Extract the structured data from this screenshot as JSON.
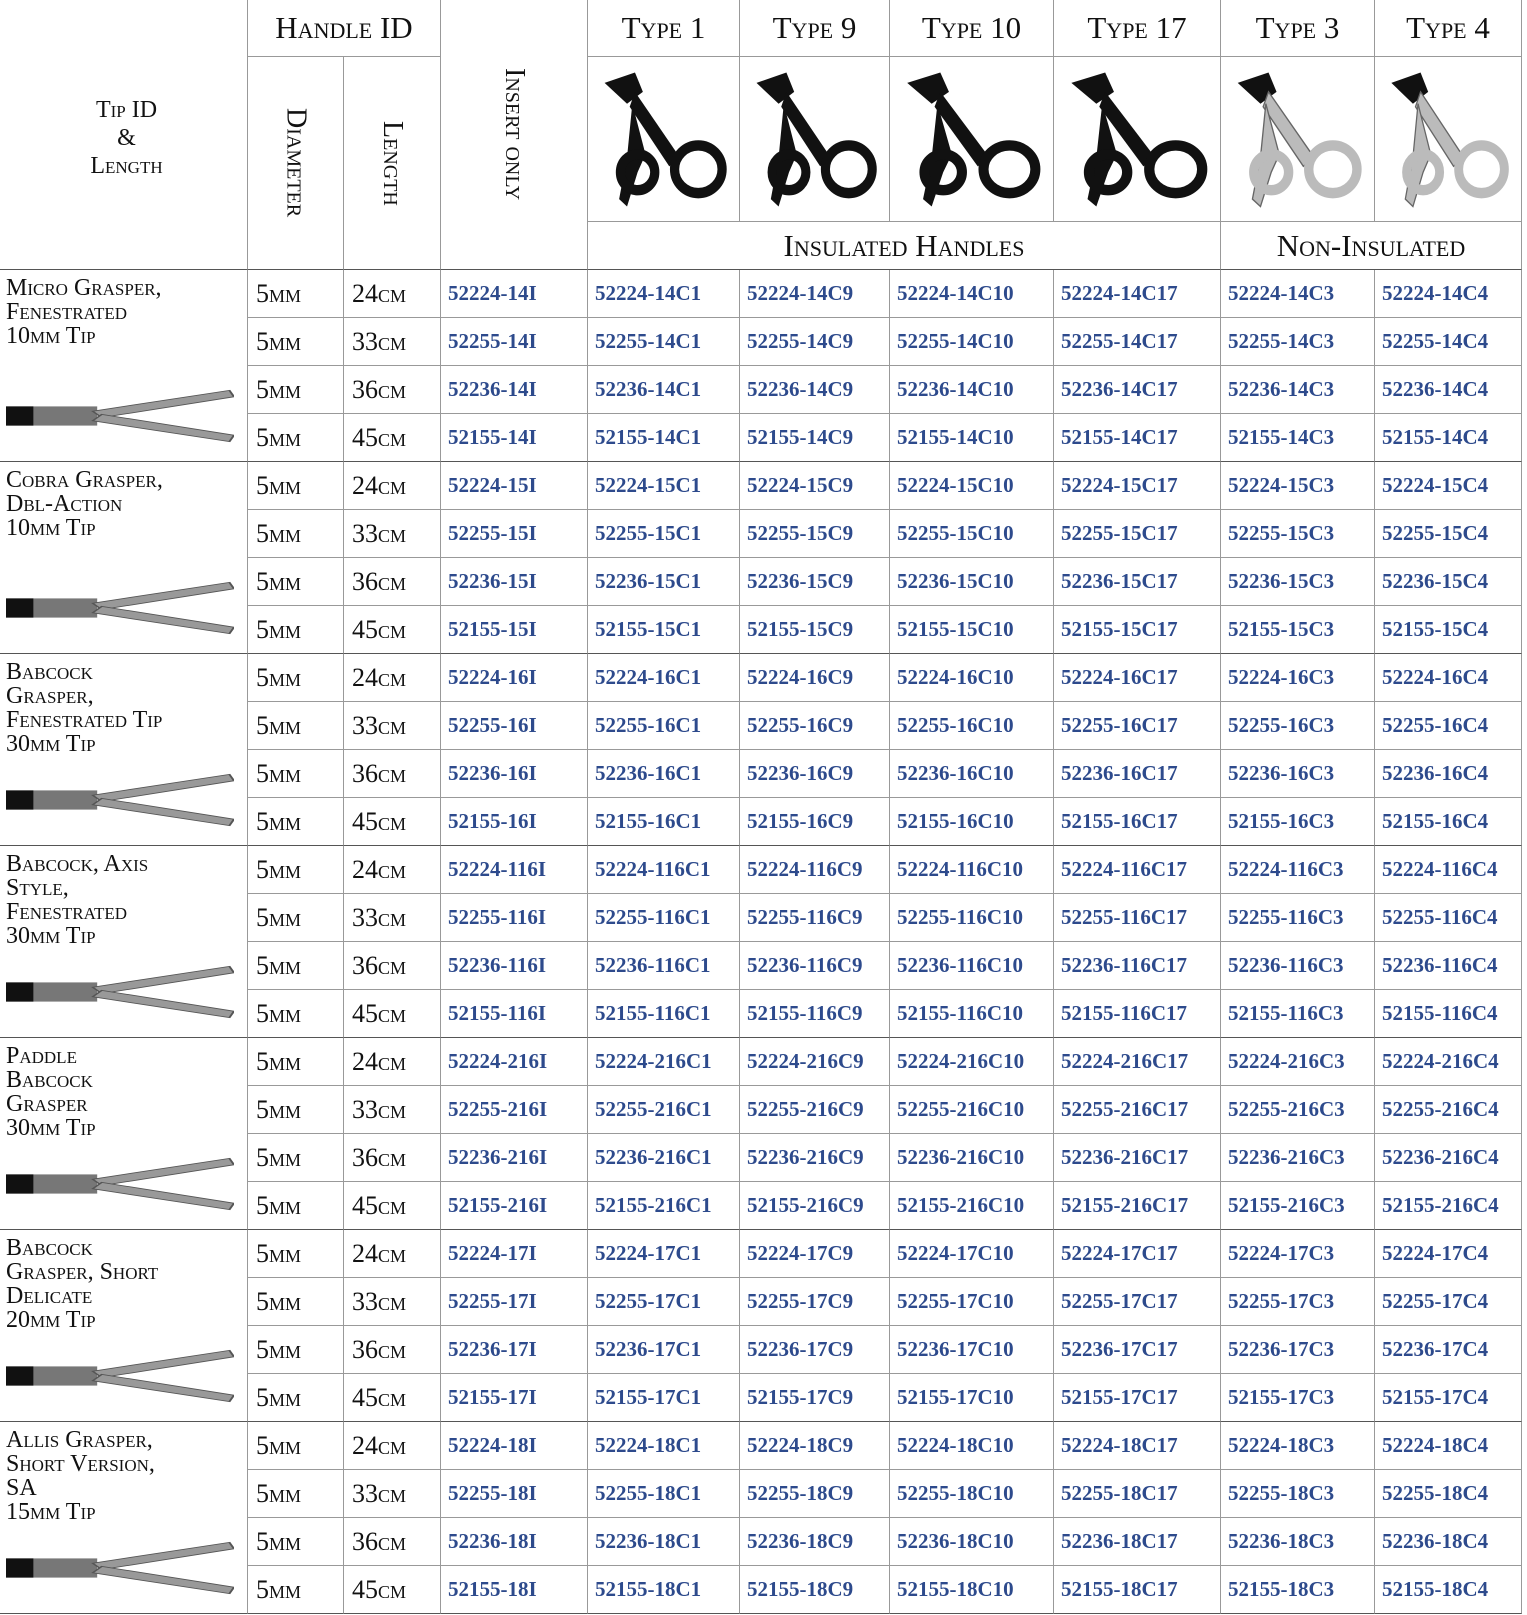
{
  "header": {
    "tip_header": [
      "Tip ID",
      "&",
      "Length"
    ],
    "handle_id": "Handle ID",
    "diameter": "Diameter",
    "length": "Length",
    "insert_only": "Insert only",
    "types": [
      "Type 1",
      "Type 9",
      "Type 10",
      "Type 17",
      "Type 3",
      "Type 4"
    ],
    "insulated": "Insulated Handles",
    "non_insulated": "Non-Insulated"
  },
  "groups": [
    {
      "name_lines": [
        "Micro Grasper,",
        "Fenestrated",
        "10mm Tip"
      ],
      "rows": [
        {
          "diameter": "5mm",
          "length": "24cm",
          "codes": [
            "52224-14I",
            "52224-14C1",
            "52224-14C9",
            "52224-14C10",
            "52224-14C17",
            "52224-14C3",
            "52224-14C4"
          ]
        },
        {
          "diameter": "5mm",
          "length": "33cm",
          "codes": [
            "52255-14I",
            "52255-14C1",
            "52255-14C9",
            "52255-14C10",
            "52255-14C17",
            "52255-14C3",
            "52255-14C4"
          ]
        },
        {
          "diameter": "5mm",
          "length": "36cm",
          "codes": [
            "52236-14I",
            "52236-14C1",
            "52236-14C9",
            "52236-14C10",
            "52236-14C17",
            "52236-14C3",
            "52236-14C4"
          ]
        },
        {
          "diameter": "5mm",
          "length": "45cm",
          "codes": [
            "52155-14I",
            "52155-14C1",
            "52155-14C9",
            "52155-14C10",
            "52155-14C17",
            "52155-14C3",
            "52155-14C4"
          ]
        }
      ]
    },
    {
      "name_lines": [
        "Cobra Grasper,",
        "Dbl-Action",
        "10mm Tip"
      ],
      "rows": [
        {
          "diameter": "5mm",
          "length": "24cm",
          "codes": [
            "52224-15I",
            "52224-15C1",
            "52224-15C9",
            "52224-15C10",
            "52224-15C17",
            "52224-15C3",
            "52224-15C4"
          ]
        },
        {
          "diameter": "5mm",
          "length": "33cm",
          "codes": [
            "52255-15I",
            "52255-15C1",
            "52255-15C9",
            "52255-15C10",
            "52255-15C17",
            "52255-15C3",
            "52255-15C4"
          ]
        },
        {
          "diameter": "5mm",
          "length": "36cm",
          "codes": [
            "52236-15I",
            "52236-15C1",
            "52236-15C9",
            "52236-15C10",
            "52236-15C17",
            "52236-15C3",
            "52236-15C4"
          ]
        },
        {
          "diameter": "5mm",
          "length": "45cm",
          "codes": [
            "52155-15I",
            "52155-15C1",
            "52155-15C9",
            "52155-15C10",
            "52155-15C17",
            "52155-15C3",
            "52155-15C4"
          ]
        }
      ]
    },
    {
      "name_lines": [
        "Babcock",
        "Grasper,",
        "Fenestrated Tip",
        "30mm Tip"
      ],
      "rows": [
        {
          "diameter": "5mm",
          "length": "24cm",
          "codes": [
            "52224-16I",
            "52224-16C1",
            "52224-16C9",
            "52224-16C10",
            "52224-16C17",
            "52224-16C3",
            "52224-16C4"
          ]
        },
        {
          "diameter": "5mm",
          "length": "33cm",
          "codes": [
            "52255-16I",
            "52255-16C1",
            "52255-16C9",
            "52255-16C10",
            "52255-16C17",
            "52255-16C3",
            "52255-16C4"
          ]
        },
        {
          "diameter": "5mm",
          "length": "36cm",
          "codes": [
            "52236-16I",
            "52236-16C1",
            "52236-16C9",
            "52236-16C10",
            "52236-16C17",
            "52236-16C3",
            "52236-16C4"
          ]
        },
        {
          "diameter": "5mm",
          "length": "45cm",
          "codes": [
            "52155-16I",
            "52155-16C1",
            "52155-16C9",
            "52155-16C10",
            "52155-16C17",
            "52155-16C3",
            "52155-16C4"
          ]
        }
      ]
    },
    {
      "name_lines": [
        "Babcock, Axis",
        "Style,",
        "Fenestrated",
        "30mm Tip"
      ],
      "rows": [
        {
          "diameter": "5mm",
          "length": "24cm",
          "codes": [
            "52224-116I",
            "52224-116C1",
            "52224-116C9",
            "52224-116C10",
            "52224-116C17",
            "52224-116C3",
            "52224-116C4"
          ]
        },
        {
          "diameter": "5mm",
          "length": "33cm",
          "codes": [
            "52255-116I",
            "52255-116C1",
            "52255-116C9",
            "52255-116C10",
            "52255-116C17",
            "52255-116C3",
            "52255-116C4"
          ]
        },
        {
          "diameter": "5mm",
          "length": "36cm",
          "codes": [
            "52236-116I",
            "52236-116C1",
            "52236-116C9",
            "52236-116C10",
            "52236-116C17",
            "52236-116C3",
            "52236-116C4"
          ]
        },
        {
          "diameter": "5mm",
          "length": "45cm",
          "codes": [
            "52155-116I",
            "52155-116C1",
            "52155-116C9",
            "52155-116C10",
            "52155-116C17",
            "52155-116C3",
            "52155-116C4"
          ]
        }
      ]
    },
    {
      "name_lines": [
        "Paddle",
        "Babcock",
        "Grasper",
        "30mm Tip"
      ],
      "rows": [
        {
          "diameter": "5mm",
          "length": "24cm",
          "codes": [
            "52224-216I",
            "52224-216C1",
            "52224-216C9",
            "52224-216C10",
            "52224-216C17",
            "52224-216C3",
            "52224-216C4"
          ]
        },
        {
          "diameter": "5mm",
          "length": "33cm",
          "codes": [
            "52255-216I",
            "52255-216C1",
            "52255-216C9",
            "52255-216C10",
            "52255-216C17",
            "52255-216C3",
            "52255-216C4"
          ]
        },
        {
          "diameter": "5mm",
          "length": "36cm",
          "codes": [
            "52236-216I",
            "52236-216C1",
            "52236-216C9",
            "52236-216C10",
            "52236-216C17",
            "52236-216C3",
            "52236-216C4"
          ]
        },
        {
          "diameter": "5mm",
          "length": "45cm",
          "codes": [
            "52155-216I",
            "52155-216C1",
            "52155-216C9",
            "52155-216C10",
            "52155-216C17",
            "52155-216C3",
            "52155-216C4"
          ]
        }
      ]
    },
    {
      "name_lines": [
        "Babcock",
        "Grasper, Short",
        "Delicate",
        "20mm Tip"
      ],
      "rows": [
        {
          "diameter": "5mm",
          "length": "24cm",
          "codes": [
            "52224-17I",
            "52224-17C1",
            "52224-17C9",
            "52224-17C10",
            "52224-17C17",
            "52224-17C3",
            "52224-17C4"
          ]
        },
        {
          "diameter": "5mm",
          "length": "33cm",
          "codes": [
            "52255-17I",
            "52255-17C1",
            "52255-17C9",
            "52255-17C10",
            "52255-17C17",
            "52255-17C3",
            "52255-17C4"
          ]
        },
        {
          "diameter": "5mm",
          "length": "36cm",
          "codes": [
            "52236-17I",
            "52236-17C1",
            "52236-17C9",
            "52236-17C10",
            "52236-17C17",
            "52236-17C3",
            "52236-17C4"
          ]
        },
        {
          "diameter": "5mm",
          "length": "45cm",
          "codes": [
            "52155-17I",
            "52155-17C1",
            "52155-17C9",
            "52155-17C10",
            "52155-17C17",
            "52155-17C3",
            "52155-17C4"
          ]
        }
      ]
    },
    {
      "name_lines": [
        "Allis Grasper,",
        "Short Version,",
        "SA",
        "15mm Tip"
      ],
      "rows": [
        {
          "diameter": "5mm",
          "length": "24cm",
          "codes": [
            "52224-18I",
            "52224-18C1",
            "52224-18C9",
            "52224-18C10",
            "52224-18C17",
            "52224-18C3",
            "52224-18C4"
          ]
        },
        {
          "diameter": "5mm",
          "length": "33cm",
          "codes": [
            "52255-18I",
            "52255-18C1",
            "52255-18C9",
            "52255-18C10",
            "52255-18C17",
            "52255-18C3",
            "52255-18C4"
          ]
        },
        {
          "diameter": "5mm",
          "length": "36cm",
          "codes": [
            "52236-18I",
            "52236-18C1",
            "52236-18C9",
            "52236-18C10",
            "52236-18C17",
            "52236-18C3",
            "52236-18C4"
          ]
        },
        {
          "diameter": "5mm",
          "length": "45cm",
          "codes": [
            "52155-18I",
            "52155-18C1",
            "52155-18C9",
            "52155-18C10",
            "52155-18C17",
            "52155-18C3",
            "52155-18C4"
          ]
        }
      ]
    }
  ]
}
